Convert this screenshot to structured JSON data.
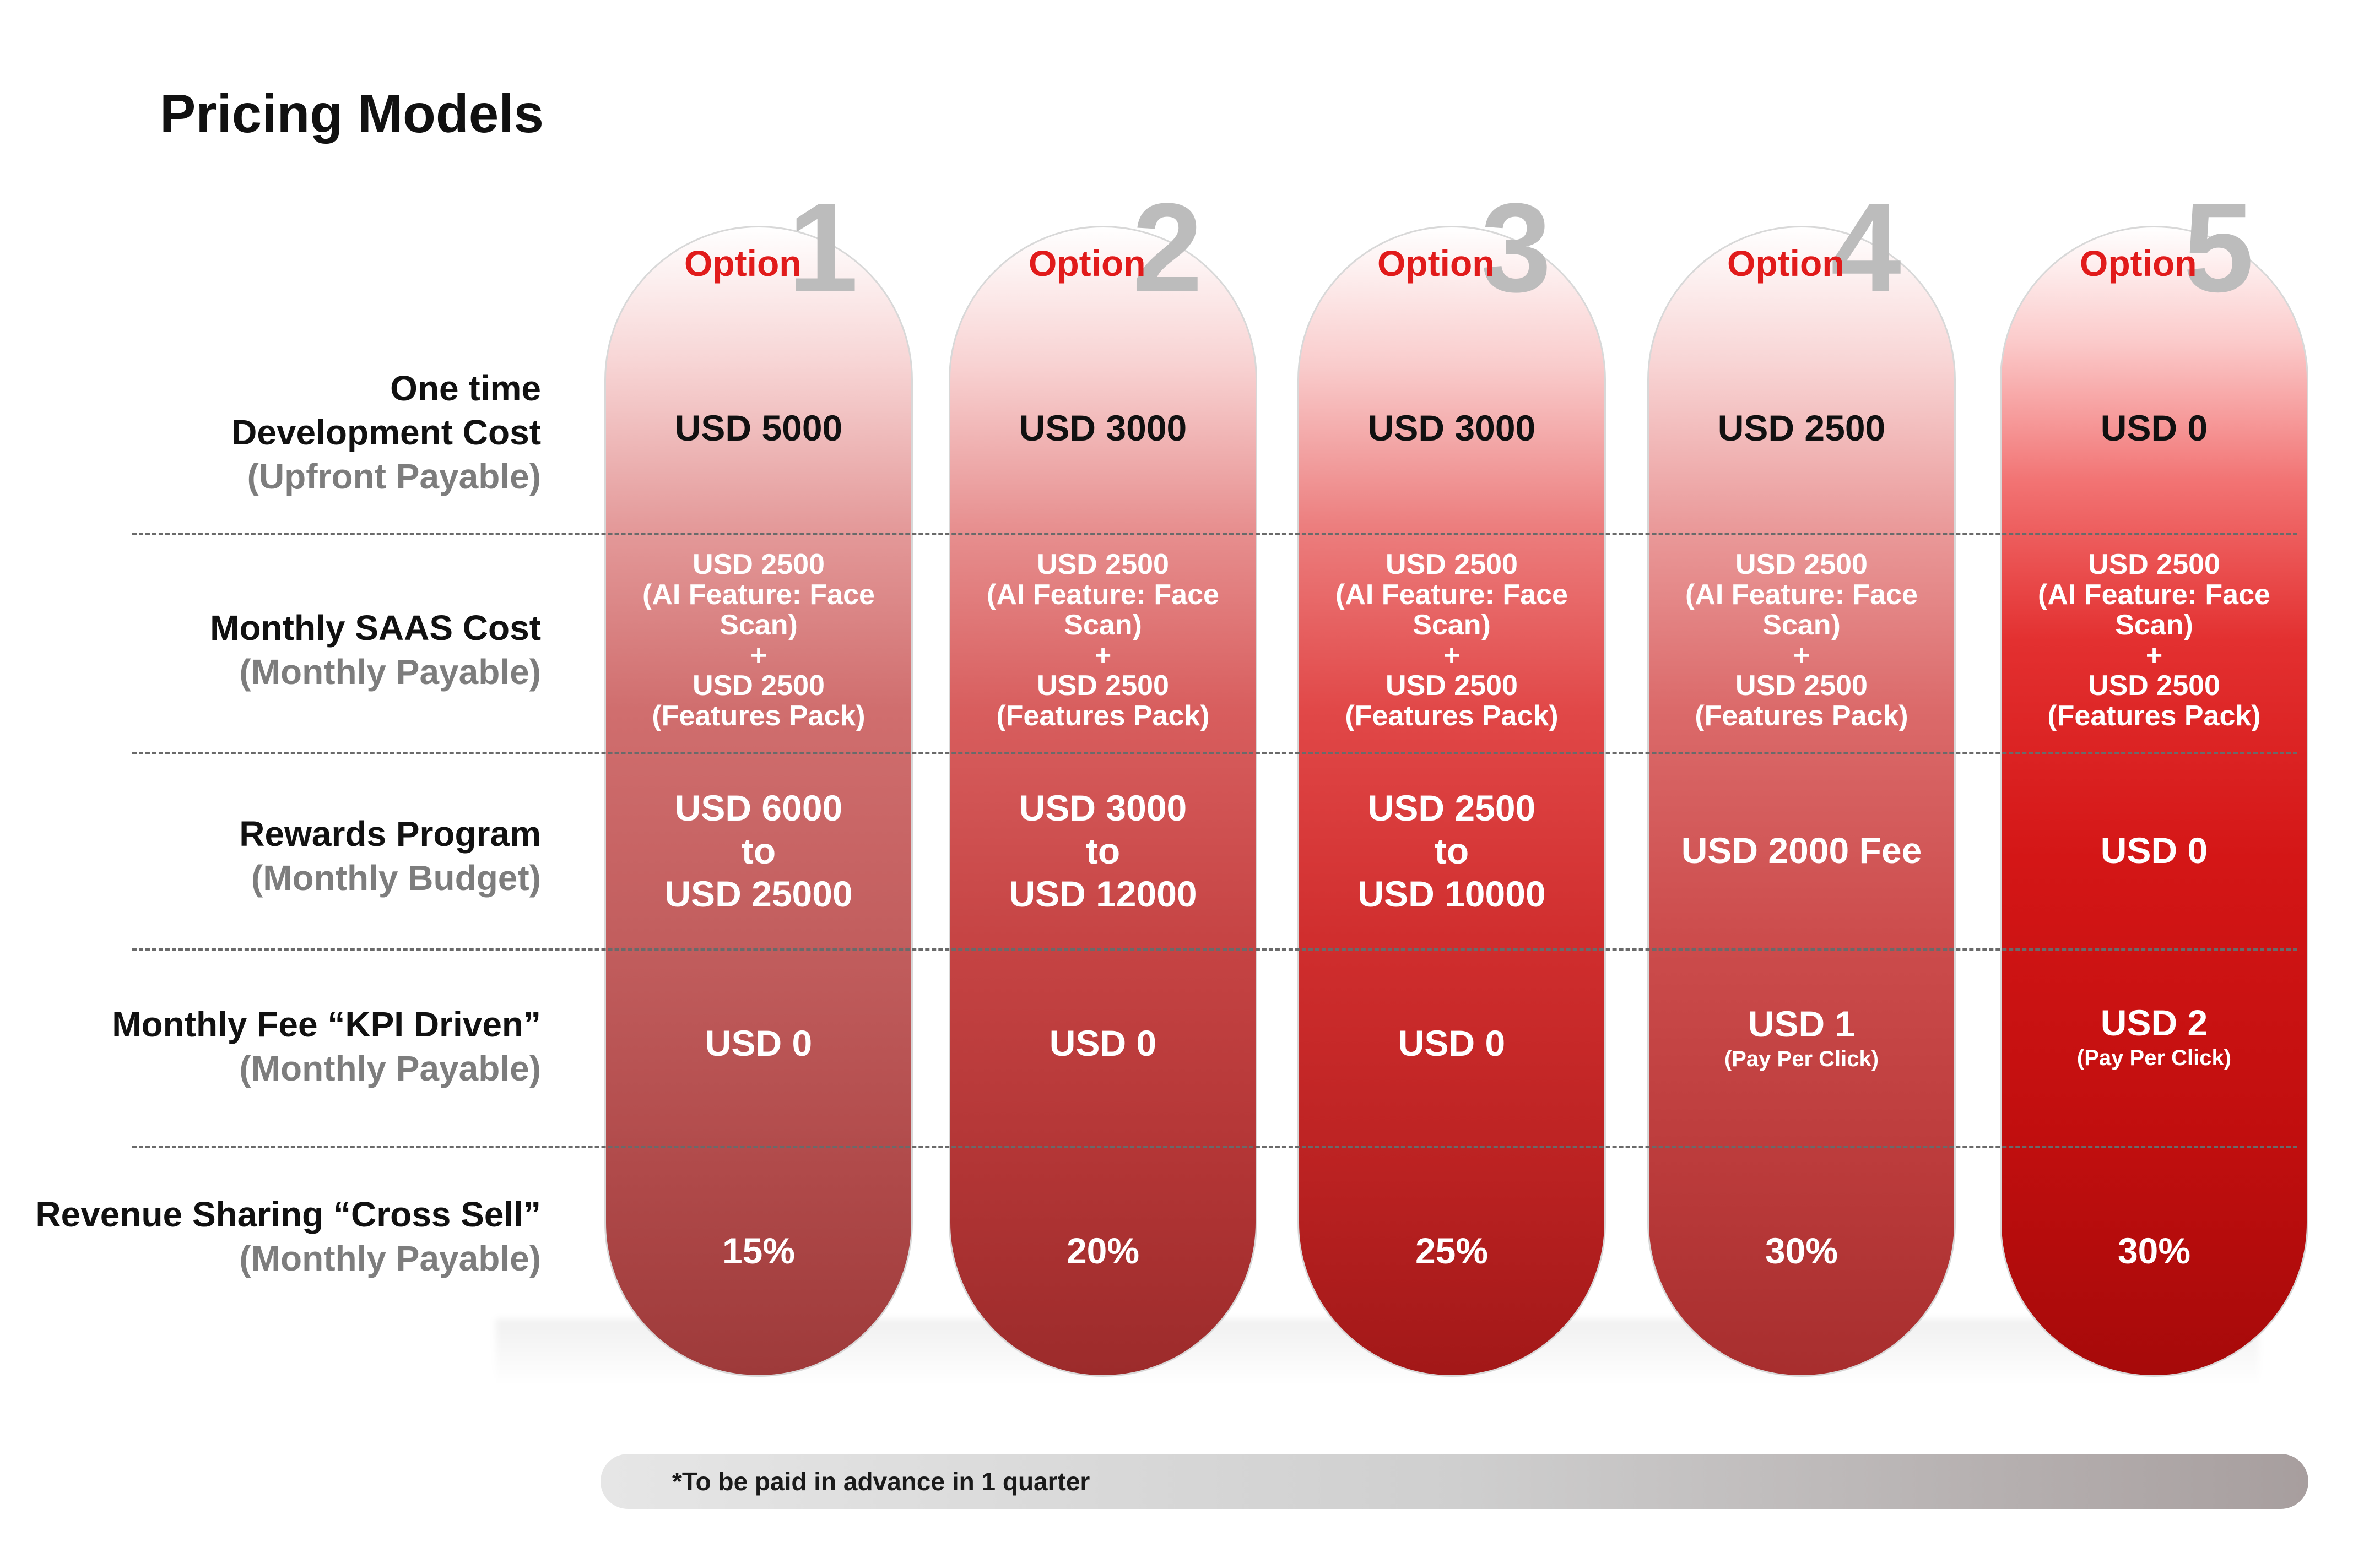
{
  "title": "Pricing Models",
  "rows": [
    {
      "label_lines": [
        "One time",
        "Development Cost"
      ],
      "sub": "(Upfront Payable)"
    },
    {
      "label_lines": [
        "Monthly SAAS Cost"
      ],
      "sub": "(Monthly Payable)"
    },
    {
      "label_lines": [
        "Rewards Program"
      ],
      "sub": "(Monthly Budget)"
    },
    {
      "label_lines": [
        "Monthly Fee “KPI Driven”"
      ],
      "sub": "(Monthly Payable)"
    },
    {
      "label_lines": [
        "Revenue Sharing “Cross Sell”"
      ],
      "sub": "(Monthly Payable)"
    }
  ],
  "options": [
    {
      "label": "Option",
      "number": "1",
      "development": "USD 5000",
      "saas_lines": [
        "USD 2500",
        "(AI Feature: Face",
        "Scan)",
        "+",
        "USD 2500",
        "(Features Pack)"
      ],
      "rewards_lines": [
        "USD 6000",
        "to",
        "USD 25000"
      ],
      "kpi": "USD 0",
      "kpi_note": "",
      "revenue": "15%"
    },
    {
      "label": "Option",
      "number": "2",
      "development": "USD 3000",
      "saas_lines": [
        "USD 2500",
        "(AI Feature: Face",
        "Scan)",
        "+",
        "USD 2500",
        "(Features Pack)"
      ],
      "rewards_lines": [
        "USD 3000",
        "to",
        "USD 12000"
      ],
      "kpi": "USD 0",
      "kpi_note": "",
      "revenue": "20%"
    },
    {
      "label": "Option",
      "number": "3",
      "development": "USD 3000",
      "saas_lines": [
        "USD 2500",
        "(AI Feature: Face",
        "Scan)",
        "+",
        "USD 2500",
        "(Features Pack)"
      ],
      "rewards_lines": [
        "USD 2500",
        "to",
        "USD 10000"
      ],
      "kpi": "USD 0",
      "kpi_note": "",
      "revenue": "25%"
    },
    {
      "label": "Option",
      "number": "4",
      "development": "USD 2500",
      "saas_lines": [
        "USD 2500",
        "(AI Feature: Face",
        "Scan)",
        "+",
        "USD 2500",
        "(Features Pack)"
      ],
      "rewards_lines": [
        "USD 2000 Fee"
      ],
      "kpi": "USD 1",
      "kpi_note": "(Pay Per Click)",
      "revenue": "30%"
    },
    {
      "label": "Option",
      "number": "5",
      "development": "USD 0",
      "saas_lines": [
        "USD 2500",
        "(AI Feature: Face",
        "Scan)",
        "+",
        "USD 2500",
        "(Features Pack)"
      ],
      "rewards_lines": [
        "USD 0"
      ],
      "kpi": "USD 2",
      "kpi_note": "(Pay Per Click)",
      "revenue": "30%"
    }
  ],
  "footnote": "*To be paid in advance in 1 quarter",
  "colors": {
    "option_label": "#e11b1b",
    "option_number": "#bcbcbc",
    "sub_label": "#7d7d7d",
    "col5_base": "#d41616"
  }
}
